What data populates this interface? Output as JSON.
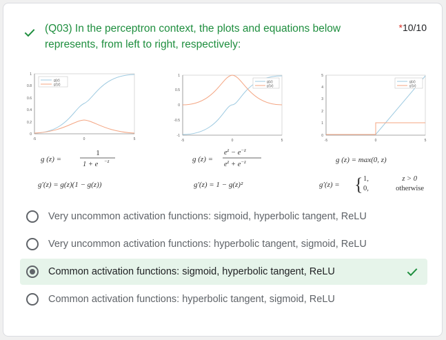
{
  "question": {
    "text": "(Q03) In the perceptron context, the plots and equations below represents, from left to right, respectively:",
    "required_mark": "*",
    "score": "10/10"
  },
  "figure": {
    "plots": [
      {
        "legend": [
          "g(z)",
          "g'(z)"
        ],
        "y_ticks": [
          "1",
          "0.8",
          "0.6",
          "0.4",
          "0.2",
          "0"
        ],
        "x_ticks": [
          "-5",
          "0",
          "5"
        ],
        "g_prefix": "g (z) =",
        "g_num": "1",
        "g_den": "1 + e",
        "g_den_sup": "−z",
        "dg_formula": "g′(z) = g(z)(1 − g(z))"
      },
      {
        "legend": [
          "g(z)",
          "g'(z)"
        ],
        "y_ticks": [
          "1",
          "0.5",
          "0",
          "-0.5",
          "-1"
        ],
        "x_ticks": [
          "-5",
          "0",
          "5"
        ],
        "g_prefix": "g (z) =",
        "g_num": "e",
        "g_num_sup1": "z",
        "g_num_mid": " − e",
        "g_num_sup2": "−z",
        "g_den": "e",
        "g_den_sup1": "z",
        "g_den_mid": " + e",
        "g_den_sup2": "−z",
        "dg_formula": "g′(z) = 1 − g(z)²"
      },
      {
        "legend": [
          "g(z)",
          "g'(z)"
        ],
        "y_ticks": [
          "5",
          "4",
          "3",
          "2",
          "1",
          "0"
        ],
        "x_ticks": [
          "-5",
          "0",
          "5"
        ],
        "g_formula": "g (z) = max(0, z)",
        "dg_prefix": "g′(z) =",
        "case1_value": "1,",
        "case1_condition": "z > 0",
        "case2_value": "0,",
        "case2_condition": "otherwise"
      }
    ],
    "colors": {
      "g": "#9ecae1",
      "dg": "#f4a582"
    }
  },
  "options": [
    {
      "label": "Very uncommon activation functions: sigmoid, hyperbolic tangent, ReLU",
      "selected": false
    },
    {
      "label": "Very uncommon activation functions: hyperbolic tangent, sigmoid, ReLU",
      "selected": false
    },
    {
      "label": "Common activation functions: sigmoid, hyperbolic tangent, ReLU",
      "selected": true,
      "correct": true
    },
    {
      "label": "Common activation functions: hyperbolic tangent, sigmoid, ReLU",
      "selected": false
    }
  ],
  "colors": {
    "correct_green": "#1e8e3e",
    "selected_bg": "#e6f4ea"
  },
  "icons": {
    "correct": "check-icon"
  }
}
